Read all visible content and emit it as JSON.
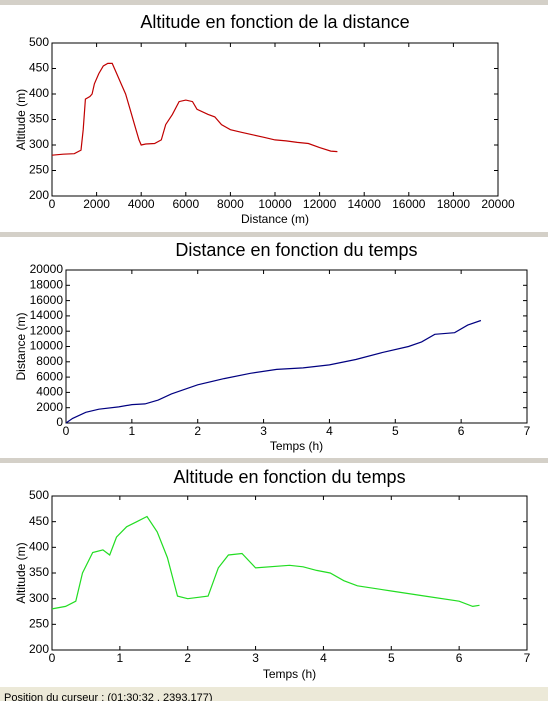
{
  "chart_data": [
    {
      "type": "line",
      "title": "Altitude en fonction de la distance",
      "xlabel": "Distance (m)",
      "ylabel": "Altitude (m)",
      "x": [
        0,
        500,
        1000,
        1300,
        1400,
        1500,
        1700,
        1800,
        1900,
        2100,
        2300,
        2500,
        2700,
        2900,
        3100,
        3300,
        3500,
        3700,
        3900,
        4000,
        4200,
        4600,
        4900,
        5100,
        5400,
        5700,
        6000,
        6300,
        6500,
        7000,
        7300,
        7600,
        8000,
        8500,
        9000,
        9500,
        10000,
        10500,
        11000,
        11500,
        12000,
        12500,
        12800
      ],
      "series": [
        {
          "color": "#c00000",
          "values": [
            280,
            282,
            283,
            290,
            330,
            390,
            395,
            400,
            420,
            440,
            455,
            460,
            460,
            440,
            420,
            400,
            370,
            340,
            310,
            300,
            302,
            303,
            310,
            340,
            360,
            385,
            388,
            385,
            370,
            360,
            355,
            340,
            330,
            325,
            320,
            315,
            310,
            308,
            305,
            303,
            295,
            288,
            287
          ]
        }
      ],
      "xlim": [
        0,
        20000
      ],
      "xticks": [
        0,
        2000,
        4000,
        6000,
        8000,
        10000,
        12000,
        14000,
        16000,
        18000,
        20000
      ],
      "ylim": [
        200,
        500
      ],
      "yticks": [
        200,
        250,
        300,
        350,
        400,
        450,
        500
      ],
      "grid": false
    },
    {
      "type": "line",
      "title": "Distance en fonction du temps",
      "xlabel": "Temps (h)",
      "ylabel": "Distance (m)",
      "x": [
        0,
        0.1,
        0.3,
        0.5,
        0.8,
        1.0,
        1.2,
        1.4,
        1.6,
        2.0,
        2.4,
        2.8,
        3.2,
        3.6,
        4.0,
        4.4,
        4.8,
        5.2,
        5.4,
        5.6,
        5.9,
        6.1,
        6.3
      ],
      "series": [
        {
          "color": "#000080",
          "values": [
            0,
            600,
            1400,
            1800,
            2100,
            2400,
            2500,
            3000,
            3800,
            5000,
            5800,
            6500,
            7000,
            7200,
            7600,
            8300,
            9200,
            10000,
            10600,
            11600,
            11800,
            12800,
            13400
          ]
        }
      ],
      "xlim": [
        0,
        7
      ],
      "xticks": [
        0,
        1,
        2,
        3,
        4,
        5,
        6,
        7
      ],
      "ylim": [
        0,
        20000
      ],
      "yticks": [
        0,
        2000,
        4000,
        6000,
        8000,
        10000,
        12000,
        14000,
        16000,
        18000,
        20000
      ],
      "grid": false
    },
    {
      "type": "line",
      "title": "Altitude en fonction du temps",
      "xlabel": "Temps (h)",
      "ylabel": "Altitude (m)",
      "x": [
        0,
        0.2,
        0.35,
        0.45,
        0.6,
        0.75,
        0.85,
        0.95,
        1.1,
        1.25,
        1.4,
        1.55,
        1.7,
        1.85,
        2.0,
        2.3,
        2.45,
        2.6,
        2.8,
        3.0,
        3.5,
        3.7,
        3.9,
        4.1,
        4.3,
        4.5,
        5.0,
        5.5,
        6.0,
        6.2,
        6.3
      ],
      "series": [
        {
          "color": "#22dd22",
          "values": [
            280,
            285,
            295,
            350,
            390,
            395,
            385,
            420,
            440,
            450,
            460,
            430,
            380,
            305,
            300,
            305,
            360,
            385,
            388,
            360,
            365,
            362,
            355,
            350,
            335,
            325,
            315,
            305,
            295,
            285,
            287
          ]
        }
      ],
      "xlim": [
        0,
        7
      ],
      "xticks": [
        0,
        1,
        2,
        3,
        4,
        5,
        6,
        7
      ],
      "ylim": [
        200,
        500
      ],
      "yticks": [
        200,
        250,
        300,
        350,
        400,
        450,
        500
      ],
      "grid": false
    }
  ],
  "status_bar": {
    "text": "Position du curseur : (01:30:32 , 2393.177)"
  }
}
